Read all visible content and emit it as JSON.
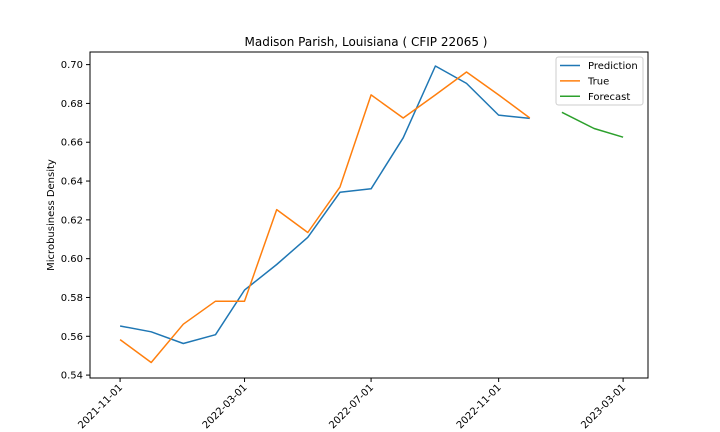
{
  "chart_data": {
    "type": "line",
    "title": "Madison Parish, Louisiana ( CFIP 22065 )",
    "xlabel": "",
    "ylabel": "Microbusiness Density",
    "x_ticks": [
      "2021-11-01",
      "2022-03-01",
      "2022-07-01",
      "2022-11-01",
      "2023-03-01"
    ],
    "y_ticks": [
      "0.54",
      "0.56",
      "0.58",
      "0.60",
      "0.62",
      "0.64",
      "0.66",
      "0.68",
      "0.70"
    ],
    "ylim": [
      0.5385,
      0.7065
    ],
    "xlim": [
      "2021-10-03",
      "2023-03-25"
    ],
    "grid": false,
    "legend_position": "top-right",
    "series": [
      {
        "name": "Prediction",
        "color": "#1f77b4",
        "x": [
          "2021-11-01",
          "2021-12-01",
          "2022-01-01",
          "2022-02-01",
          "2022-03-01",
          "2022-04-01",
          "2022-05-01",
          "2022-06-01",
          "2022-07-01",
          "2022-08-01",
          "2022-09-01",
          "2022-10-01",
          "2022-11-01",
          "2022-12-01"
        ],
        "values": [
          0.5653,
          0.5623,
          0.5563,
          0.5608,
          0.5838,
          0.597,
          0.611,
          0.6342,
          0.636,
          0.6623,
          0.6993,
          0.6903,
          0.674,
          0.6723
        ]
      },
      {
        "name": "True",
        "color": "#ff7f0e",
        "x": [
          "2021-11-01",
          "2021-12-01",
          "2022-01-01",
          "2022-02-01",
          "2022-03-01",
          "2022-04-01",
          "2022-05-01",
          "2022-06-01",
          "2022-07-01",
          "2022-08-01",
          "2022-09-01",
          "2022-10-01",
          "2022-11-01",
          "2022-12-01"
        ],
        "values": [
          0.5583,
          0.5465,
          0.5662,
          0.5781,
          0.5781,
          0.6253,
          0.6135,
          0.637,
          0.6844,
          0.6725,
          0.6844,
          0.6962,
          0.6844,
          0.6725
        ]
      },
      {
        "name": "Forecast",
        "color": "#2ca02c",
        "x": [
          "2023-01-01",
          "2023-02-01",
          "2023-03-01"
        ],
        "values": [
          0.6754,
          0.6671,
          0.6626
        ]
      }
    ]
  }
}
